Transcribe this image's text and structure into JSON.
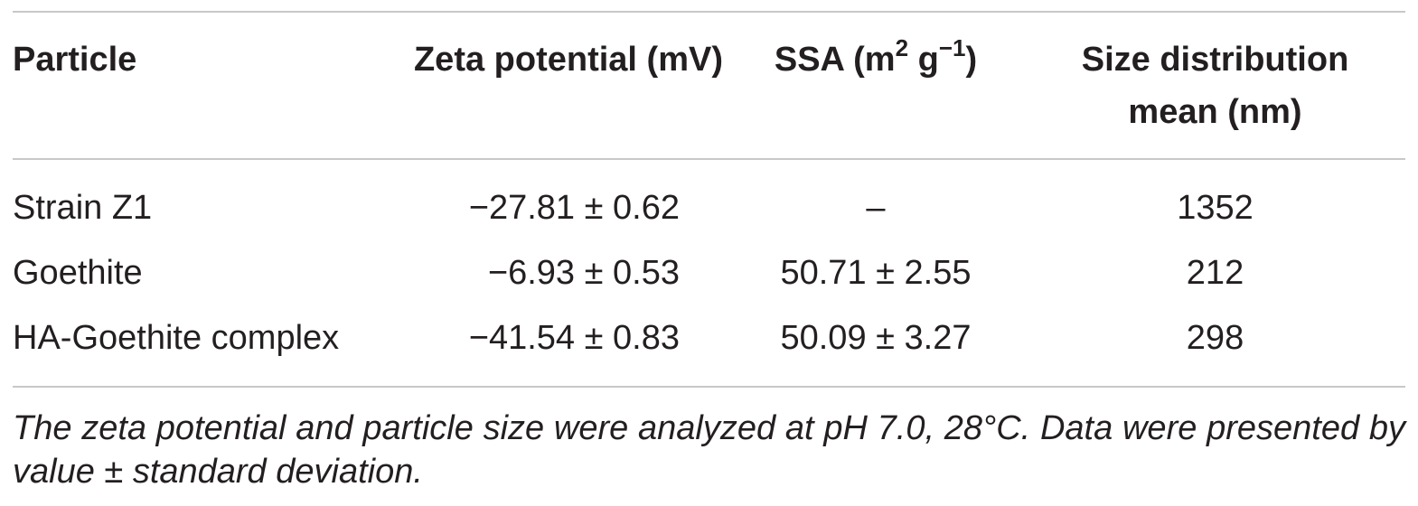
{
  "table": {
    "headers": {
      "particle": "Particle",
      "zeta": "Zeta potential (mV)",
      "ssa_prefix": "SSA (m",
      "ssa_sup1": "2",
      "ssa_mid": " g",
      "ssa_sup2": "−1",
      "ssa_suffix": ")",
      "size_line1": "Size distribution",
      "size_line2": "mean (nm)"
    },
    "rows": [
      {
        "particle": "Strain Z1",
        "zeta": "−27.81 ± 0.62",
        "ssa": "–",
        "size": "1352"
      },
      {
        "particle": "Goethite",
        "zeta": "−6.93 ± 0.53",
        "ssa": "50.71 ± 2.55",
        "size": "212"
      },
      {
        "particle": "HA-Goethite complex",
        "zeta": "−41.54 ± 0.83",
        "ssa": "50.09 ± 3.27",
        "size": "298"
      }
    ],
    "footnote": "The zeta potential and particle size were analyzed at pH 7.0, 28°C. Data were presented by value ± standard deviation."
  },
  "colors": {
    "text": "#231f20",
    "rule": "#c8c8c8"
  }
}
